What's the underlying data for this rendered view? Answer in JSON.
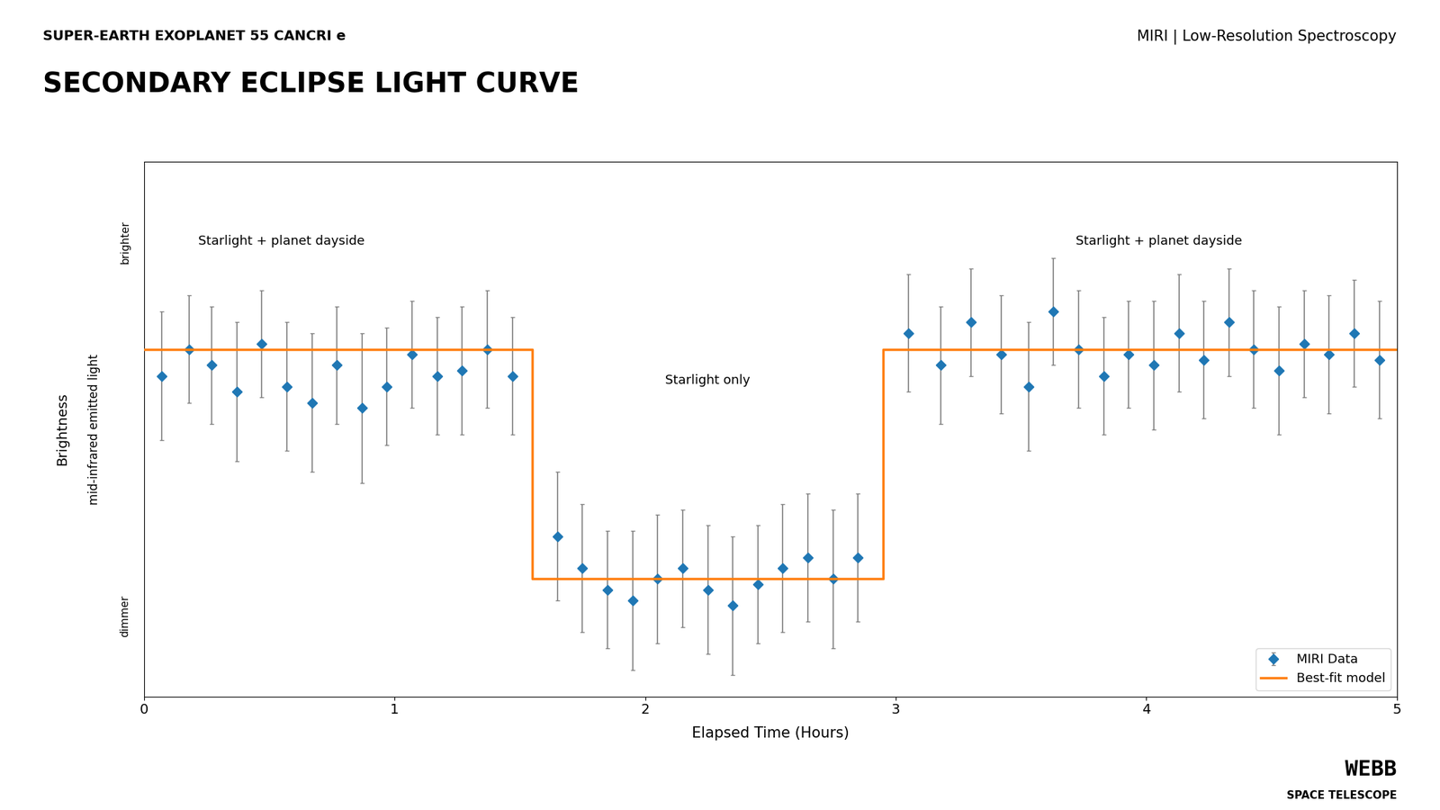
{
  "chart_data": {
    "type": "scatter",
    "subtitle": "SUPER-EARTH EXOPLANET 55 CANCRI e",
    "title": "SECONDARY ECLIPSE LIGHT CURVE",
    "instrument": "MIRI | Low-Resolution Spectroscopy",
    "xlabel": "Elapsed Time (Hours)",
    "ylabel": "Brightness",
    "ylabel_note": "mid-infrared emitted light",
    "y_high_label": "brighter",
    "y_low_label": "dimmer",
    "xlim": [
      0,
      5
    ],
    "xticks": [
      0,
      1,
      2,
      3,
      4,
      5
    ],
    "ylim": [
      0,
      1
    ],
    "tick_labels": "x",
    "grid": false,
    "legend": "lower right",
    "series": [
      {
        "name": "MIRI Data",
        "type": "scatter",
        "marker": "diamond",
        "x": [
          0.07,
          0.18,
          0.27,
          0.37,
          0.47,
          0.57,
          0.67,
          0.77,
          0.87,
          0.97,
          1.07,
          1.17,
          1.27,
          1.37,
          1.47,
          1.65,
          1.75,
          1.85,
          1.95,
          2.05,
          2.15,
          2.25,
          2.35,
          2.45,
          2.55,
          2.65,
          2.75,
          2.85,
          3.05,
          3.18,
          3.3,
          3.42,
          3.53,
          3.63,
          3.73,
          3.83,
          3.93,
          4.03,
          4.13,
          4.23,
          4.33,
          4.43,
          4.53,
          4.63,
          4.73,
          4.83,
          4.93
        ],
        "values": [
          0.6,
          0.65,
          0.62,
          0.57,
          0.66,
          0.58,
          0.55,
          0.62,
          0.54,
          0.58,
          0.64,
          0.6,
          0.61,
          0.65,
          0.6,
          0.3,
          0.24,
          0.2,
          0.18,
          0.22,
          0.24,
          0.2,
          0.17,
          0.21,
          0.24,
          0.26,
          0.22,
          0.26,
          0.68,
          0.62,
          0.7,
          0.64,
          0.58,
          0.72,
          0.65,
          0.6,
          0.64,
          0.62,
          0.68,
          0.63,
          0.7,
          0.65,
          0.61,
          0.66,
          0.64,
          0.68,
          0.63
        ],
        "errors": [
          0.12,
          0.1,
          0.11,
          0.13,
          0.1,
          0.12,
          0.13,
          0.11,
          0.14,
          0.11,
          0.1,
          0.11,
          0.12,
          0.11,
          0.11,
          0.12,
          0.12,
          0.11,
          0.13,
          0.12,
          0.11,
          0.12,
          0.13,
          0.11,
          0.12,
          0.12,
          0.13,
          0.12,
          0.11,
          0.11,
          0.1,
          0.11,
          0.12,
          0.1,
          0.11,
          0.11,
          0.1,
          0.12,
          0.11,
          0.11,
          0.1,
          0.11,
          0.12,
          0.1,
          0.11,
          0.1,
          0.11
        ]
      },
      {
        "name": "Best-fit model",
        "type": "line",
        "line_style": "solid",
        "x": [
          0.0,
          1.55,
          1.55,
          2.95,
          2.95,
          5.0
        ],
        "values": [
          0.65,
          0.65,
          0.22,
          0.22,
          0.65,
          0.65
        ]
      }
    ],
    "annotations": [
      {
        "text": "Starlight + planet dayside",
        "x": 0.55,
        "y": 0.84
      },
      {
        "text": "Starlight + planet dayside",
        "x": 4.05,
        "y": 0.84
      },
      {
        "text": "Starlight only",
        "x": 2.25,
        "y": 0.58
      }
    ],
    "credit": [
      "WEBB",
      "SPACE TELESCOPE"
    ]
  }
}
